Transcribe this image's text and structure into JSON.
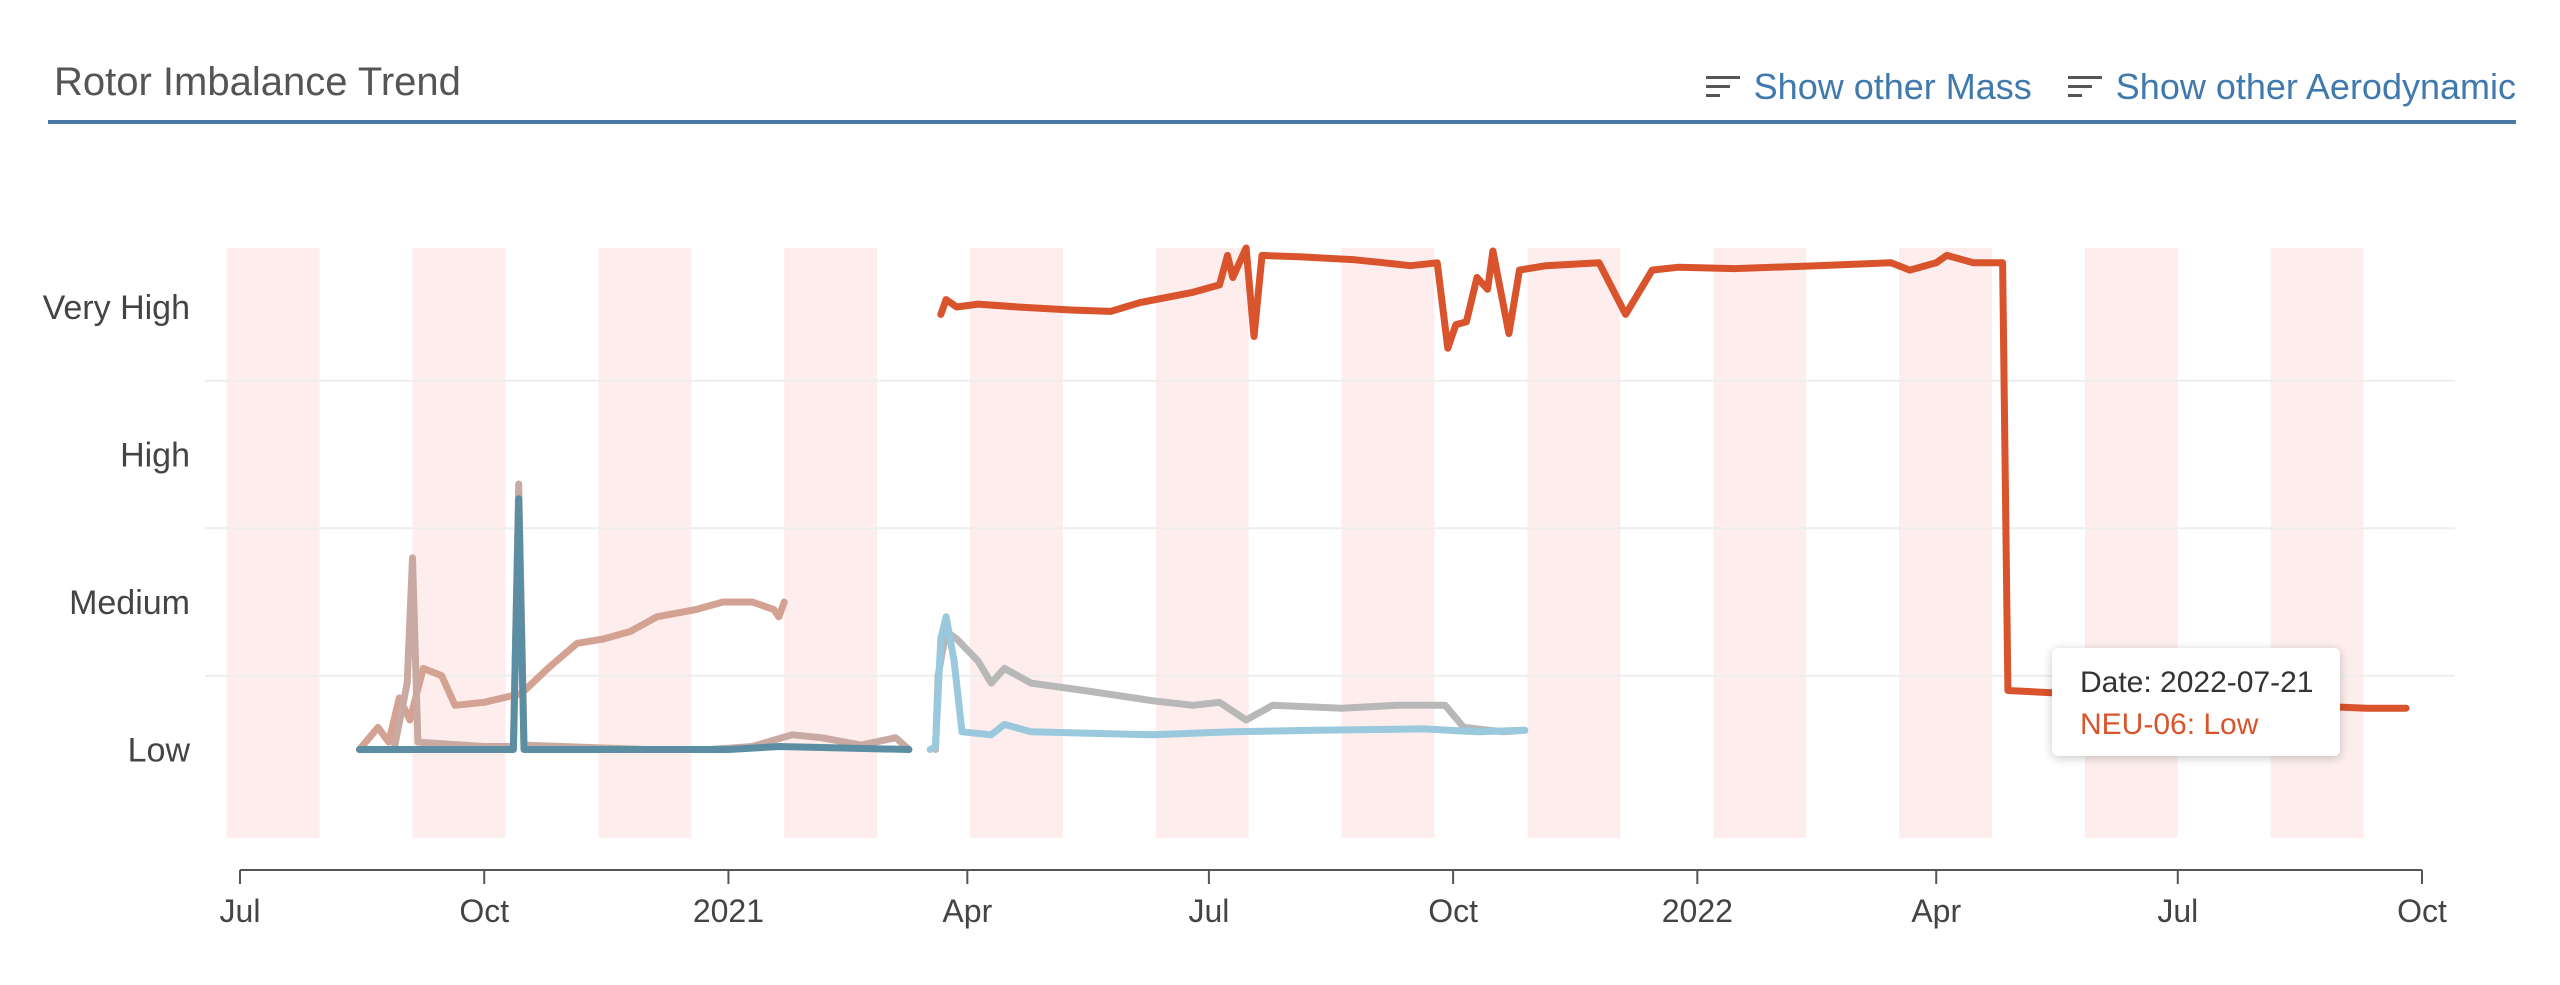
{
  "header": {
    "title": "Rotor Imbalance Trend",
    "show_mass": "Show other Mass",
    "show_aero": "Show other Aerodynamic",
    "icon": "sort-lines-icon"
  },
  "tooltip": {
    "date_label": "Date: 2022-07-21",
    "value_label": "NEU-06: Low"
  },
  "chart_data": {
    "type": "line",
    "title": "",
    "xlabel": "",
    "ylabel": "",
    "y_categories": [
      "Low",
      "Medium",
      "High",
      "Very High"
    ],
    "ylim": [
      0.4,
      4.4
    ],
    "xlim": [
      "2020-07-01",
      "2022-10-01"
    ],
    "x_ticks": [
      {
        "date": "2020-07-01",
        "label": "Jul"
      },
      {
        "date": "2020-10-01",
        "label": "Oct"
      },
      {
        "date": "2021-01-01",
        "label": "2021"
      },
      {
        "date": "2021-04-01",
        "label": "Apr"
      },
      {
        "date": "2021-07-01",
        "label": "Jul"
      },
      {
        "date": "2021-10-01",
        "label": "Oct"
      },
      {
        "date": "2022-01-01",
        "label": "2022"
      },
      {
        "date": "2022-04-01",
        "label": "Apr"
      },
      {
        "date": "2022-07-01",
        "label": "Jul"
      },
      {
        "date": "2022-10-01",
        "label": "Oct"
      }
    ],
    "grid": "horizontal",
    "weekly_bands": true,
    "band_color": "#fdeeed",
    "series": [
      {
        "color": "#d9532c",
        "width": 7,
        "points": [
          [
            "2021-03-22",
            3.95
          ],
          [
            "2021-03-24",
            4.05
          ],
          [
            "2021-03-28",
            4.0
          ],
          [
            "2021-04-05",
            4.02
          ],
          [
            "2021-04-20",
            4.0
          ],
          [
            "2021-05-10",
            3.98
          ],
          [
            "2021-05-25",
            3.97
          ],
          [
            "2021-06-05",
            4.03
          ],
          [
            "2021-06-25",
            4.1
          ],
          [
            "2021-07-05",
            4.15
          ],
          [
            "2021-07-08",
            4.35
          ],
          [
            "2021-07-10",
            4.2
          ],
          [
            "2021-07-15",
            4.4
          ],
          [
            "2021-07-18",
            3.8
          ],
          [
            "2021-07-21",
            4.35
          ],
          [
            "2021-08-05",
            4.34
          ],
          [
            "2021-08-25",
            4.32
          ],
          [
            "2021-09-05",
            4.3
          ],
          [
            "2021-09-15",
            4.28
          ],
          [
            "2021-09-25",
            4.3
          ],
          [
            "2021-09-29",
            3.72
          ],
          [
            "2021-10-02",
            3.88
          ],
          [
            "2021-10-06",
            3.9
          ],
          [
            "2021-10-10",
            4.2
          ],
          [
            "2021-10-14",
            4.12
          ],
          [
            "2021-10-16",
            4.38
          ],
          [
            "2021-10-22",
            3.82
          ],
          [
            "2021-10-26",
            4.25
          ],
          [
            "2021-11-05",
            4.28
          ],
          [
            "2021-11-25",
            4.3
          ],
          [
            "2021-12-05",
            3.95
          ],
          [
            "2021-12-10",
            4.1
          ],
          [
            "2021-12-15",
            4.25
          ],
          [
            "2021-12-25",
            4.27
          ],
          [
            "2022-01-15",
            4.26
          ],
          [
            "2022-02-15",
            4.28
          ],
          [
            "2022-03-15",
            4.3
          ],
          [
            "2022-03-22",
            4.25
          ],
          [
            "2022-04-01",
            4.3
          ],
          [
            "2022-04-05",
            4.35
          ],
          [
            "2022-04-15",
            4.3
          ],
          [
            "2022-04-26",
            4.3
          ],
          [
            "2022-04-28",
            1.4
          ],
          [
            "2022-05-20",
            1.38
          ],
          [
            "2022-06-10",
            1.4
          ],
          [
            "2022-06-25",
            1.38
          ],
          [
            "2022-07-10",
            1.33
          ],
          [
            "2022-07-21",
            1.3
          ],
          [
            "2022-08-15",
            1.3
          ],
          [
            "2022-09-10",
            1.28
          ],
          [
            "2022-09-25",
            1.28
          ]
        ]
      },
      {
        "color": "#d4a292",
        "width": 7,
        "points": [
          [
            "2020-08-15",
            1.0
          ],
          [
            "2020-08-22",
            1.15
          ],
          [
            "2020-08-26",
            1.05
          ],
          [
            "2020-08-30",
            1.35
          ],
          [
            "2020-09-03",
            1.2
          ],
          [
            "2020-09-08",
            1.55
          ],
          [
            "2020-09-15",
            1.5
          ],
          [
            "2020-09-20",
            1.3
          ],
          [
            "2020-10-01",
            1.32
          ],
          [
            "2020-10-15",
            1.38
          ],
          [
            "2020-10-25",
            1.55
          ],
          [
            "2020-11-05",
            1.72
          ],
          [
            "2020-11-15",
            1.75
          ],
          [
            "2020-11-25",
            1.8
          ],
          [
            "2020-12-05",
            1.9
          ],
          [
            "2020-12-20",
            1.95
          ],
          [
            "2020-12-30",
            2.0
          ],
          [
            "2021-01-10",
            2.0
          ],
          [
            "2021-01-18",
            1.95
          ],
          [
            "2021-01-20",
            1.9
          ],
          [
            "2021-01-22",
            2.0
          ]
        ]
      },
      {
        "color": "#c9aaa2",
        "width": 7,
        "points": [
          [
            "2020-08-15",
            1.0
          ],
          [
            "2020-08-28",
            1.0
          ],
          [
            "2020-09-02",
            1.45
          ],
          [
            "2020-09-04",
            2.3
          ],
          [
            "2020-09-06",
            1.05
          ],
          [
            "2020-10-01",
            1.02
          ],
          [
            "2020-10-12",
            1.02
          ],
          [
            "2020-10-14",
            2.8
          ],
          [
            "2020-10-16",
            1.03
          ],
          [
            "2020-12-01",
            1.0
          ],
          [
            "2020-12-25",
            1.0
          ],
          [
            "2021-01-10",
            1.02
          ],
          [
            "2021-01-25",
            1.1
          ],
          [
            "2021-02-05",
            1.08
          ],
          [
            "2021-02-20",
            1.03
          ],
          [
            "2021-03-05",
            1.08
          ],
          [
            "2021-03-10",
            1.0
          ]
        ]
      },
      {
        "color": "#5b8ea3",
        "width": 7,
        "points": [
          [
            "2020-08-15",
            1.0
          ],
          [
            "2020-10-12",
            1.0
          ],
          [
            "2020-10-14",
            2.7
          ],
          [
            "2020-10-16",
            1.0
          ],
          [
            "2021-01-01",
            1.0
          ],
          [
            "2021-01-20",
            1.02
          ],
          [
            "2021-03-10",
            1.0
          ]
        ]
      },
      {
        "color": "#b8b8b8",
        "width": 7,
        "points": [
          [
            "2021-03-20",
            1.0
          ],
          [
            "2021-03-21",
            1.5
          ],
          [
            "2021-03-24",
            1.8
          ],
          [
            "2021-03-28",
            1.75
          ],
          [
            "2021-04-05",
            1.6
          ],
          [
            "2021-04-10",
            1.45
          ],
          [
            "2021-04-15",
            1.55
          ],
          [
            "2021-04-25",
            1.45
          ],
          [
            "2021-05-15",
            1.4
          ],
          [
            "2021-06-10",
            1.33
          ],
          [
            "2021-06-25",
            1.3
          ],
          [
            "2021-07-05",
            1.32
          ],
          [
            "2021-07-15",
            1.2
          ],
          [
            "2021-07-25",
            1.3
          ],
          [
            "2021-08-20",
            1.28
          ],
          [
            "2021-09-10",
            1.3
          ],
          [
            "2021-09-28",
            1.3
          ],
          [
            "2021-10-05",
            1.15
          ],
          [
            "2021-10-20",
            1.12
          ],
          [
            "2021-10-28",
            1.13
          ]
        ]
      },
      {
        "color": "#9ac8dc",
        "width": 7,
        "points": [
          [
            "2021-03-18",
            1.0
          ],
          [
            "2021-03-20",
            1.02
          ],
          [
            "2021-03-22",
            1.75
          ],
          [
            "2021-03-24",
            1.9
          ],
          [
            "2021-03-27",
            1.6
          ],
          [
            "2021-03-30",
            1.12
          ],
          [
            "2021-04-10",
            1.1
          ],
          [
            "2021-04-15",
            1.17
          ],
          [
            "2021-04-25",
            1.12
          ],
          [
            "2021-06-10",
            1.1
          ],
          [
            "2021-07-10",
            1.12
          ],
          [
            "2021-08-10",
            1.13
          ],
          [
            "2021-09-20",
            1.14
          ],
          [
            "2021-10-10",
            1.12
          ],
          [
            "2021-10-28",
            1.13
          ]
        ]
      }
    ],
    "highlight_point": {
      "date": "2022-07-21",
      "value": 1.3,
      "color": "#d9532c"
    }
  }
}
